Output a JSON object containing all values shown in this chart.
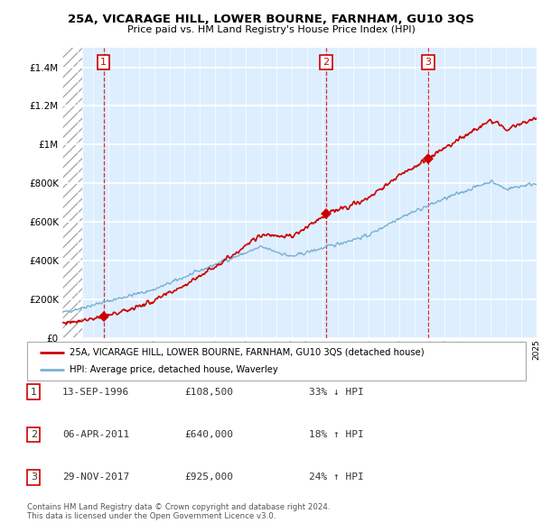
{
  "title": "25A, VICARAGE HILL, LOWER BOURNE, FARNHAM, GU10 3QS",
  "subtitle": "Price paid vs. HM Land Registry's House Price Index (HPI)",
  "ylim": [
    0,
    1500000
  ],
  "yticks": [
    0,
    200000,
    400000,
    600000,
    800000,
    1000000,
    1200000,
    1400000
  ],
  "x_start_year": 1994,
  "x_end_year": 2025,
  "hpi_color": "#7ab0d4",
  "price_color": "#cc0000",
  "grid_color": "#c8d8e8",
  "bg_color": "#ddeeff",
  "transactions": [
    {
      "year": 1996.7,
      "price": 108500,
      "label": "1"
    },
    {
      "year": 2011.25,
      "price": 640000,
      "label": "2"
    },
    {
      "year": 2017.92,
      "price": 925000,
      "label": "3"
    }
  ],
  "legend_price_label": "25A, VICARAGE HILL, LOWER BOURNE, FARNHAM, GU10 3QS (detached house)",
  "legend_hpi_label": "HPI: Average price, detached house, Waverley",
  "table_rows": [
    {
      "num": "1",
      "date": "13-SEP-1996",
      "price": "£108,500",
      "hpi": "33% ↓ HPI"
    },
    {
      "num": "2",
      "date": "06-APR-2011",
      "price": "£640,000",
      "hpi": "18% ↑ HPI"
    },
    {
      "num": "3",
      "date": "29-NOV-2017",
      "price": "£925,000",
      "hpi": "24% ↑ HPI"
    }
  ],
  "footnote": "Contains HM Land Registry data © Crown copyright and database right 2024.\nThis data is licensed under the Open Government Licence v3.0."
}
